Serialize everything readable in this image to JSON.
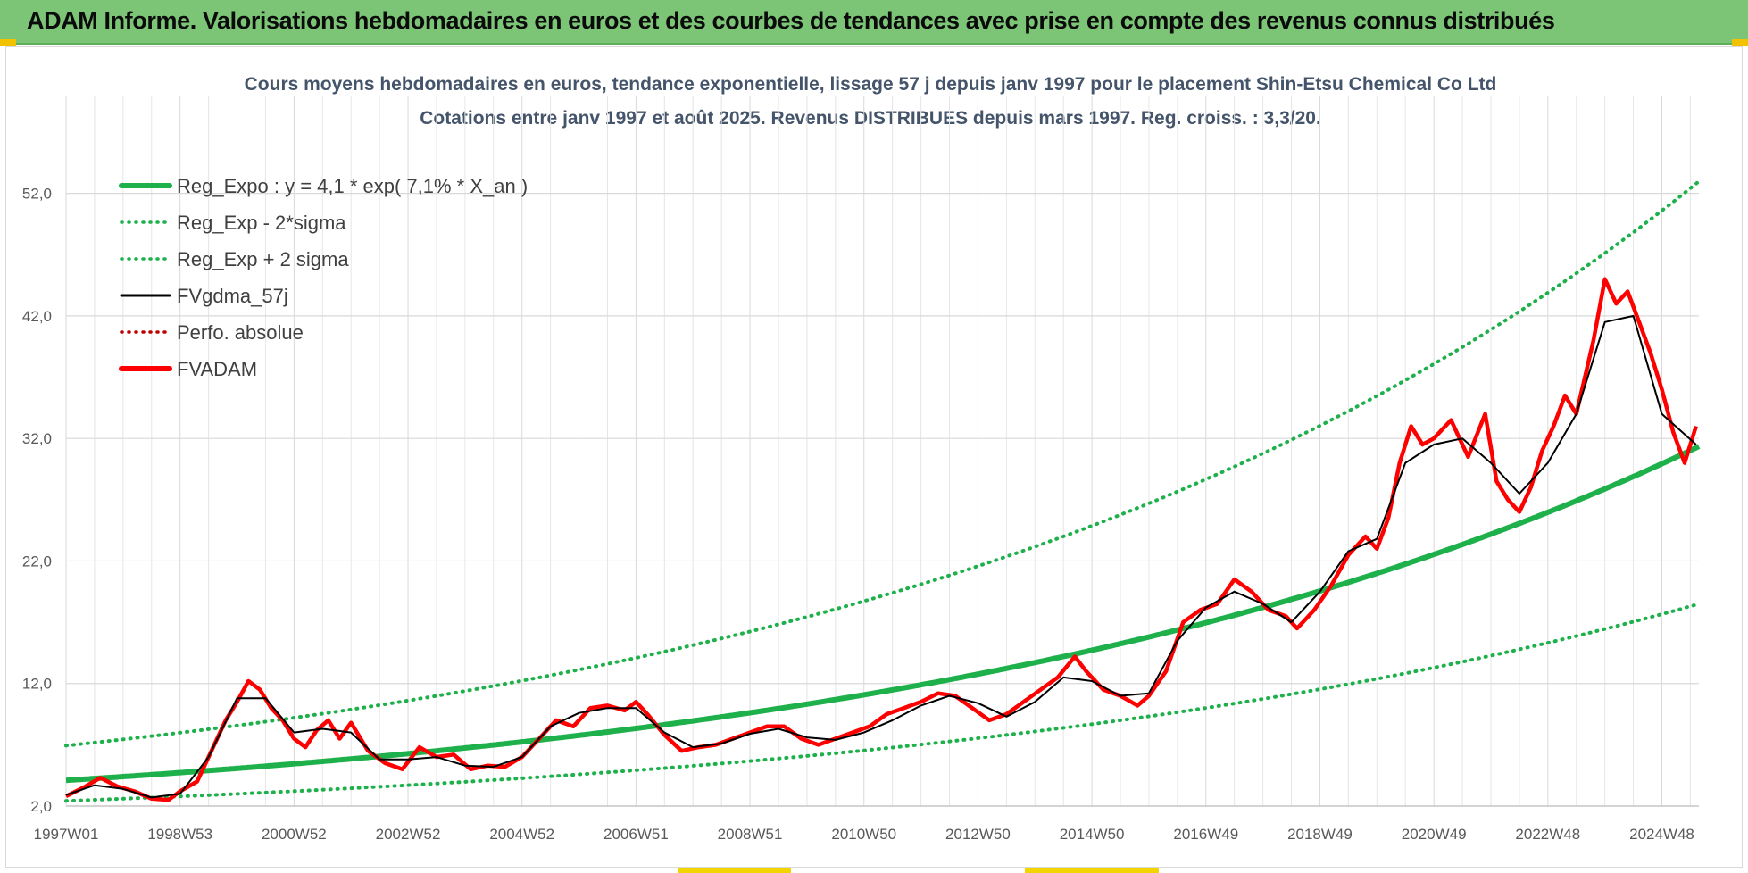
{
  "banner": {
    "title": "ADAM Informe. Valorisations hebdomadaires en euros et des courbes de tendances avec prise en compte des revenus connus distribués"
  },
  "colors": {
    "banner_bg": "#7cc576",
    "trend_green": "#1db04b",
    "sigma_green": "#1db04b",
    "fvgdma_black": "#000000",
    "fvadam_red": "#ff0000",
    "perfo_red": "#c00000",
    "grid": "#d9d9d9"
  },
  "chart_data": {
    "type": "line",
    "title_line1": "Cours moyens hebdomadaires en euros, tendance exponentielle, lissage 57 j depuis janv 1997 pour le placement Shin-Etsu Chemical Co Ltd",
    "title_line2": "Cotations entre janv 1997 et août 2025.  Revenus DISTRIBUES depuis mars 1997. Reg. croiss. : 3,3/20.",
    "xlabel": "",
    "ylabel": "",
    "x_range": [
      1997.0,
      2025.65
    ],
    "ylim": [
      2,
      57
    ],
    "y_ticks": [
      2,
      12,
      22,
      32,
      42,
      52
    ],
    "y_tick_labels": [
      "2,0",
      "12,0",
      "22,0",
      "32,0",
      "42,0",
      "52,0"
    ],
    "x_ticks": [
      1997.0,
      1999.0,
      2001.0,
      2003.0,
      2005.0,
      2007.0,
      2009.0,
      2011.0,
      2013.0,
      2015.0,
      2017.0,
      2019.0,
      2021.0,
      2023.0,
      2025.0
    ],
    "x_tick_labels": [
      "1997W01",
      "1998W53",
      "2000W52",
      "2002W52",
      "2004W52",
      "2006W51",
      "2008W51",
      "2010W50",
      "2012W50",
      "2014W50",
      "2016W49",
      "2018W49",
      "2020W49",
      "2022W48",
      "2024W48"
    ],
    "grid": true,
    "legend_position": "top-left",
    "legend": [
      {
        "label": "Reg_Expo : y = 4,1 * exp( 7,1% *  X_an )",
        "style": "solid-thick",
        "color": "#1db04b"
      },
      {
        "label": "Reg_Exp - 2*sigma",
        "style": "dotted",
        "color": "#1db04b"
      },
      {
        "label": "Reg_Exp + 2 sigma",
        "style": "dotted",
        "color": "#1db04b"
      },
      {
        "label": "FVgdma_57j",
        "style": "solid-thin",
        "color": "#000000"
      },
      {
        "label": "Perfo. absolue",
        "style": "dotted",
        "color": "#c00000"
      },
      {
        "label": "FVADAM",
        "style": "solid-thick",
        "color": "#ff0000"
      }
    ],
    "regression": {
      "a": 4.1,
      "rate": 0.071,
      "start_year": 1997.0,
      "minus_2sigma_factor": 0.59,
      "plus_2sigma_factor": 1.69
    },
    "series": [
      {
        "name": "FVADAM",
        "x": [
          1997.0,
          1997.3,
          1997.6,
          1997.9,
          1998.2,
          1998.5,
          1998.8,
          1999.0,
          1999.3,
          1999.6,
          1999.8,
          2000.0,
          2000.2,
          2000.4,
          2000.6,
          2000.8,
          2001.0,
          2001.2,
          2001.4,
          2001.6,
          2001.8,
          2002.0,
          2002.3,
          2002.6,
          2002.9,
          2003.2,
          2003.5,
          2003.8,
          2004.1,
          2004.4,
          2004.7,
          2005.0,
          2005.3,
          2005.6,
          2005.9,
          2006.2,
          2006.5,
          2006.8,
          2007.0,
          2007.2,
          2007.5,
          2007.8,
          2008.1,
          2008.4,
          2008.7,
          2009.0,
          2009.3,
          2009.6,
          2009.9,
          2010.2,
          2010.5,
          2010.8,
          2011.1,
          2011.4,
          2011.7,
          2012.0,
          2012.3,
          2012.6,
          2012.9,
          2013.2,
          2013.5,
          2013.8,
          2014.1,
          2014.4,
          2014.7,
          2014.9,
          2015.2,
          2015.5,
          2015.8,
          2016.0,
          2016.3,
          2016.6,
          2016.9,
          2017.2,
          2017.5,
          2017.8,
          2018.1,
          2018.4,
          2018.6,
          2018.9,
          2019.2,
          2019.5,
          2019.8,
          2020.0,
          2020.2,
          2020.4,
          2020.6,
          2020.8,
          2021.0,
          2021.3,
          2021.6,
          2021.9,
          2022.1,
          2022.3,
          2022.5,
          2022.7,
          2022.9,
          2023.1,
          2023.3,
          2023.5,
          2023.8,
          2024.0,
          2024.2,
          2024.4,
          2024.6,
          2024.8,
          2025.0,
          2025.2,
          2025.4,
          2025.6
        ],
        "y": [
          2.8,
          3.5,
          4.3,
          3.6,
          3.2,
          2.6,
          2.5,
          3.2,
          4.0,
          7.0,
          9.0,
          10.5,
          12.2,
          11.5,
          10.0,
          9.0,
          7.5,
          6.8,
          8.2,
          9.0,
          7.5,
          8.8,
          6.5,
          5.5,
          5.0,
          6.8,
          6.0,
          6.2,
          5.0,
          5.3,
          5.2,
          6.0,
          7.5,
          9.0,
          8.5,
          10.0,
          10.2,
          9.8,
          10.5,
          9.5,
          7.8,
          6.5,
          6.8,
          7.0,
          7.5,
          8.0,
          8.5,
          8.5,
          7.5,
          7.0,
          7.5,
          8.0,
          8.5,
          9.5,
          10.0,
          10.5,
          11.2,
          11.0,
          10.0,
          9.0,
          9.5,
          10.5,
          11.5,
          12.5,
          14.2,
          13.0,
          11.5,
          11.0,
          10.2,
          11.0,
          13.0,
          17.0,
          18.0,
          18.5,
          20.5,
          19.5,
          18.0,
          17.5,
          16.5,
          18.0,
          20.0,
          22.5,
          24.0,
          23.0,
          25.5,
          30.0,
          33.0,
          31.5,
          32.0,
          33.5,
          30.5,
          34.0,
          28.5,
          27.0,
          26.0,
          28.0,
          31.0,
          33.0,
          35.5,
          34.0,
          40.0,
          45.0,
          43.0,
          44.0,
          41.5,
          39.0,
          36.0,
          32.5,
          30.0,
          33.0
        ]
      },
      {
        "name": "FVgdma_57j",
        "x": [
          1997.0,
          1997.5,
          1998.0,
          1998.5,
          1999.0,
          1999.5,
          2000.0,
          2000.5,
          2001.0,
          2001.5,
          2002.0,
          2002.5,
          2003.0,
          2003.5,
          2004.0,
          2004.5,
          2005.0,
          2005.5,
          2006.0,
          2006.5,
          2007.0,
          2007.5,
          2008.0,
          2008.5,
          2009.0,
          2009.5,
          2010.0,
          2010.5,
          2011.0,
          2011.5,
          2012.0,
          2012.5,
          2013.0,
          2013.5,
          2014.0,
          2014.5,
          2015.0,
          2015.5,
          2016.0,
          2016.5,
          2017.0,
          2017.5,
          2018.0,
          2018.5,
          2019.0,
          2019.5,
          2020.0,
          2020.5,
          2021.0,
          2021.5,
          2022.0,
          2022.5,
          2023.0,
          2023.5,
          2024.0,
          2024.5,
          2025.0,
          2025.6
        ],
        "y": [
          2.9,
          3.7,
          3.4,
          2.7,
          3.0,
          6.0,
          10.8,
          10.8,
          8.0,
          8.3,
          8.0,
          5.8,
          5.8,
          6.0,
          5.3,
          5.2,
          6.0,
          8.5,
          9.6,
          10.0,
          10.0,
          8.0,
          6.8,
          7.1,
          7.9,
          8.3,
          7.6,
          7.4,
          8.0,
          9.0,
          10.2,
          11.0,
          10.4,
          9.3,
          10.5,
          12.5,
          12.2,
          11.0,
          11.2,
          15.5,
          18.2,
          19.5,
          18.5,
          17.0,
          19.5,
          22.8,
          23.8,
          30.0,
          31.5,
          32.0,
          30.0,
          27.5,
          30.0,
          34.0,
          41.5,
          42.0,
          34.0,
          31.5
        ]
      }
    ]
  }
}
